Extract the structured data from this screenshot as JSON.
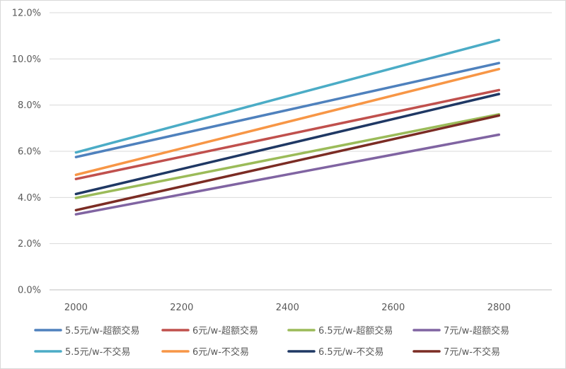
{
  "chart_data": {
    "type": "line",
    "x": [
      2000,
      2800
    ],
    "x_ticks": [
      "2000",
      "2200",
      "2400",
      "2600",
      "2800"
    ],
    "y_ticks": [
      "0.0%",
      "2.0%",
      "4.0%",
      "6.0%",
      "8.0%",
      "10.0%",
      "12.0%"
    ],
    "xlim": [
      1950,
      2900
    ],
    "ylim": [
      0,
      12
    ],
    "grid": "horizontal",
    "legend": "bottom",
    "series": [
      {
        "name": "5.5元/w-超额交易",
        "color": "#4f81bd",
        "values": [
          5.75,
          9.82
        ]
      },
      {
        "name": "6元/w-超额交易",
        "color": "#c0504d",
        "values": [
          4.8,
          8.65
        ]
      },
      {
        "name": "6.5元/w-超额交易",
        "color": "#9bbb59",
        "values": [
          3.98,
          7.6
        ]
      },
      {
        "name": "7元/w-超额交易",
        "color": "#8064a2",
        "values": [
          3.27,
          6.72
        ]
      },
      {
        "name": "5.5元/w-不交易",
        "color": "#4bacc6",
        "values": [
          5.95,
          10.82
        ]
      },
      {
        "name": "6元/w-不交易",
        "color": "#f79646",
        "values": [
          4.98,
          9.56
        ]
      },
      {
        "name": "6.5元/w-不交易",
        "color": "#1f3864",
        "values": [
          4.15,
          8.48
        ]
      },
      {
        "name": "7元/w-不交易",
        "color": "#7b2c24",
        "values": [
          3.45,
          7.55
        ]
      }
    ]
  }
}
